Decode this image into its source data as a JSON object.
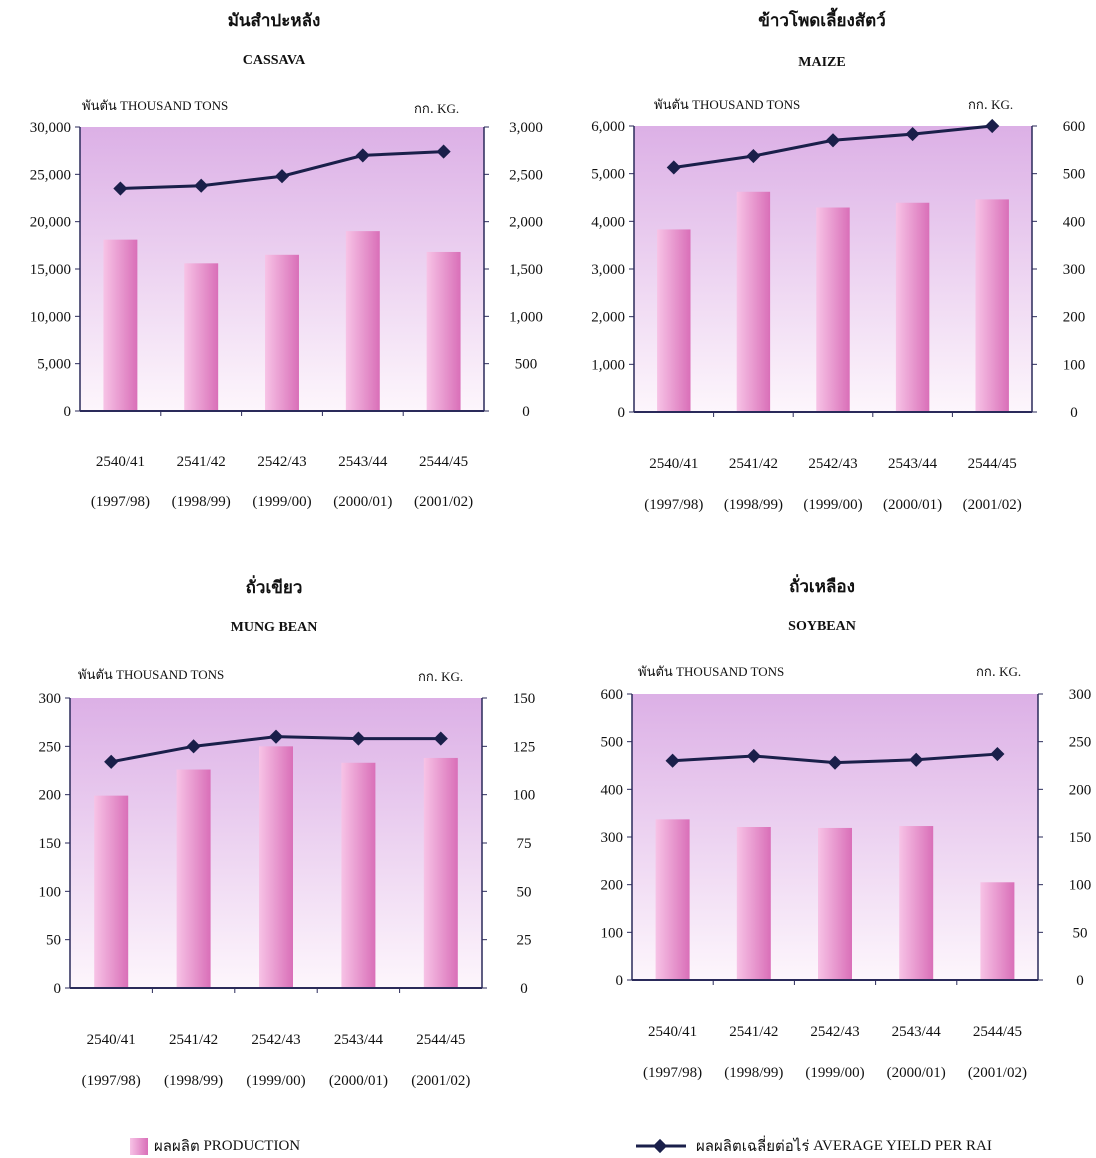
{
  "chart_data": [
    {
      "type": "bar",
      "title_th": "มันสำปะหลัง",
      "title": "CASSAVA",
      "ylabel_left_th": "พันตัน",
      "ylabel_left": "THOUSAND TONS",
      "ylabel_right_th": "กก.",
      "ylabel_right": "KG.",
      "categories": [
        "2540/41",
        "2541/42",
        "2542/43",
        "2543/44",
        "2544/45"
      ],
      "categories_sub": [
        "(1997/98)",
        "(1998/99)",
        "(1999/00)",
        "(2000/01)",
        "(2001/02)"
      ],
      "left_ticks": [
        "0",
        "5,000",
        "10,000",
        "15,000",
        "20,000",
        "25,000",
        "30,000"
      ],
      "right_ticks": [
        "0",
        "500",
        "1,000",
        "1,500",
        "2,000",
        "2,500",
        "3,000"
      ],
      "ylim_left": [
        0,
        30000
      ],
      "ylim_right": [
        0,
        3000
      ],
      "series": [
        {
          "name": "PRODUCTION",
          "axis": "left",
          "values": [
            18100,
            15600,
            16500,
            19000,
            16800
          ]
        },
        {
          "name": "AVERAGE YIELD PER RAI",
          "axis": "right",
          "values": [
            2350,
            2380,
            2480,
            2700,
            2740
          ]
        }
      ]
    },
    {
      "type": "bar",
      "title_th": "ข้าวโพดเลี้ยงสัตว์",
      "title": "MAIZE",
      "ylabel_left_th": "พันตัน",
      "ylabel_left": "THOUSAND TONS",
      "ylabel_right_th": "กก.",
      "ylabel_right": "KG.",
      "categories": [
        "2540/41",
        "2541/42",
        "2542/43",
        "2543/44",
        "2544/45"
      ],
      "categories_sub": [
        "(1997/98)",
        "(1998/99)",
        "(1999/00)",
        "(2000/01)",
        "(2001/02)"
      ],
      "left_ticks": [
        "0",
        "1,000",
        "2,000",
        "3,000",
        "4,000",
        "5,000",
        "6,000"
      ],
      "right_ticks": [
        "0",
        "100",
        "200",
        "300",
        "400",
        "500",
        "600"
      ],
      "ylim_left": [
        0,
        6000
      ],
      "ylim_right": [
        0,
        600
      ],
      "series": [
        {
          "name": "PRODUCTION",
          "axis": "left",
          "values": [
            3830,
            4620,
            4290,
            4390,
            4460
          ]
        },
        {
          "name": "AVERAGE YIELD PER RAI",
          "axis": "right",
          "values": [
            513,
            537,
            570,
            583,
            600
          ]
        }
      ]
    },
    {
      "type": "bar",
      "title_th": "ถั่วเขียว",
      "title": "MUNG BEAN",
      "ylabel_left_th": "พันตัน",
      "ylabel_left": "THOUSAND TONS",
      "ylabel_right_th": "กก.",
      "ylabel_right": "KG.",
      "categories": [
        "2540/41",
        "2541/42",
        "2542/43",
        "2543/44",
        "2544/45"
      ],
      "categories_sub": [
        "(1997/98)",
        "(1998/99)",
        "(1999/00)",
        "(2000/01)",
        "(2001/02)"
      ],
      "left_ticks": [
        "0",
        "50",
        "100",
        "150",
        "200",
        "250",
        "300"
      ],
      "right_ticks": [
        "0",
        "25",
        "50",
        "75",
        "100",
        "125",
        "150"
      ],
      "ylim_left": [
        0,
        300
      ],
      "ylim_right": [
        0,
        150
      ],
      "series": [
        {
          "name": "PRODUCTION",
          "axis": "left",
          "values": [
            199,
            226,
            250,
            233,
            238
          ]
        },
        {
          "name": "AVERAGE YIELD PER RAI",
          "axis": "right",
          "values": [
            117,
            125,
            130,
            129,
            129
          ]
        }
      ]
    },
    {
      "type": "bar",
      "title_th": "ถั่วเหลือง",
      "title": "SOYBEAN",
      "ylabel_left_th": "พันตัน",
      "ylabel_left": "THOUSAND TONS",
      "ylabel_right_th": "กก.",
      "ylabel_right": "KG.",
      "categories": [
        "2540/41",
        "2541/42",
        "2542/43",
        "2543/44",
        "2544/45"
      ],
      "categories_sub": [
        "(1997/98)",
        "(1998/99)",
        "(1999/00)",
        "(2000/01)",
        "(2001/02)"
      ],
      "left_ticks": [
        "0",
        "100",
        "200",
        "300",
        "400",
        "500",
        "600"
      ],
      "right_ticks": [
        "0",
        "50",
        "100",
        "150",
        "200",
        "250",
        "300"
      ],
      "ylim_left": [
        0,
        600
      ],
      "ylim_right": [
        0,
        300
      ],
      "series": [
        {
          "name": "PRODUCTION",
          "axis": "left",
          "values": [
            337,
            321,
            319,
            323,
            205
          ]
        },
        {
          "name": "AVERAGE YIELD PER RAI",
          "axis": "right",
          "values": [
            230,
            235,
            228,
            231,
            237
          ]
        }
      ]
    }
  ],
  "legend": {
    "production_th": "ผลผลิต",
    "production": "PRODUCTION",
    "yield_th": "ผลผลิตเฉลี่ยต่อไร่",
    "yield": "AVERAGE YIELD PER RAI"
  },
  "colors": {
    "bar_light": "#f7c3e6",
    "bar_dark": "#d96fb8",
    "plot_top": "#dcb0e6",
    "plot_bottom": "#fdf6fc",
    "line": "#1a1f4a",
    "axis": "#2a2a5a"
  }
}
